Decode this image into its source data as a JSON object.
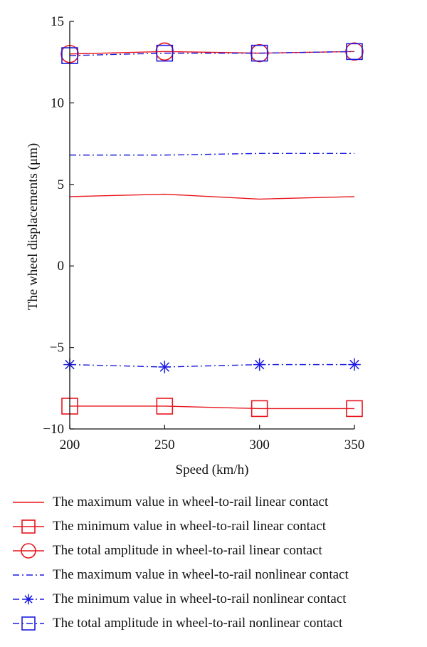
{
  "chart_data": {
    "type": "line",
    "xlabel": "Speed (km/h)",
    "ylabel": "The wheel displacements (μm)",
    "x": [
      200,
      250,
      300,
      350
    ],
    "xlim": [
      200,
      350
    ],
    "ylim": [
      -10,
      15
    ],
    "xticks": [
      "200",
      "250",
      "300",
      "350"
    ],
    "yticks": [
      "15",
      "10",
      "5",
      "0",
      "−5",
      "−10"
    ],
    "grid": false,
    "legend_position": "below",
    "series": [
      {
        "name": "The maximum value in wheel-to-rail linear contact",
        "values": [
          4.25,
          4.4,
          4.1,
          4.25
        ],
        "color": "#e8141c",
        "dash": "solid",
        "marker": "none"
      },
      {
        "name": "The minimum value in wheel-to-rail linear contact",
        "values": [
          -8.6,
          -8.6,
          -8.75,
          -8.75
        ],
        "color": "#e8141c",
        "dash": "solid",
        "marker": "square"
      },
      {
        "name": "The total amplitude in wheel-to-rail linear contact",
        "values": [
          13.0,
          13.15,
          13.05,
          13.15
        ],
        "color": "#e8141c",
        "dash": "solid",
        "marker": "circle"
      },
      {
        "name": "The maximum value in wheel-to-rail nonlinear contact",
        "values": [
          6.8,
          6.8,
          6.9,
          6.9
        ],
        "color": "#1c1ce0",
        "dash": "dashdot",
        "marker": "none"
      },
      {
        "name": "The minimum value in wheel-to-rail nonlinear contact",
        "values": [
          -6.05,
          -6.2,
          -6.05,
          -6.05
        ],
        "color": "#1c1ce0",
        "dash": "dashdot",
        "marker": "star"
      },
      {
        "name": "The total amplitude in wheel-to-rail nonlinear contact",
        "values": [
          12.9,
          13.05,
          13.05,
          13.15
        ],
        "color": "#1c1ce0",
        "dash": "dashdot",
        "marker": "square"
      }
    ]
  }
}
